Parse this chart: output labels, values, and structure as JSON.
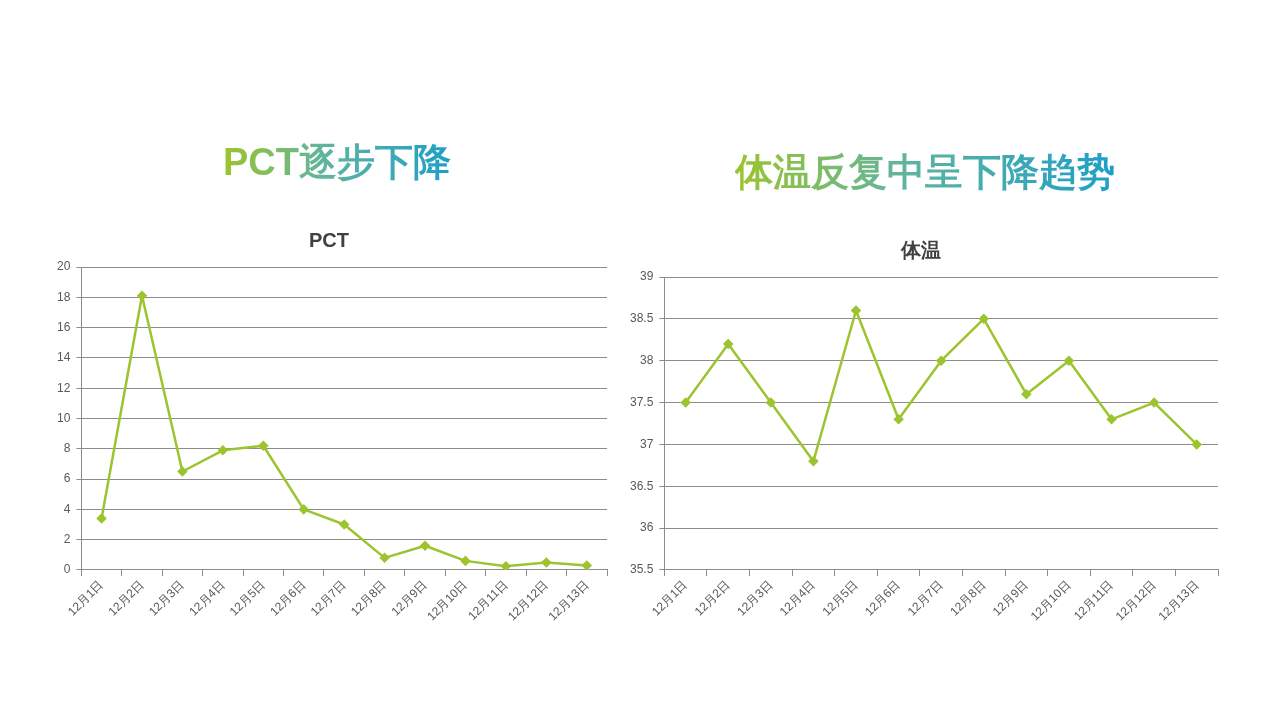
{
  "chart_data": [
    {
      "type": "line",
      "title": "PCT逐步下降",
      "subtitle": "PCT",
      "categories": [
        "12月1日",
        "12月2日",
        "12月3日",
        "12月4日",
        "12月5日",
        "12月6日",
        "12月7日",
        "12月8日",
        "12月9日",
        "12月10日",
        "12月11日",
        "12月12日",
        "12月13日"
      ],
      "series": [
        {
          "color": "#9cc42e",
          "values": [
            3.4,
            18.1,
            6.5,
            7.9,
            8.2,
            4.0,
            3.0,
            0.8,
            1.6,
            0.6,
            0.25,
            0.5,
            0.3
          ]
        }
      ],
      "ylim": [
        0,
        20
      ],
      "yticks": [
        0,
        2,
        4,
        6,
        8,
        10,
        12,
        14,
        16,
        18,
        20
      ],
      "grid": "y",
      "marker": "diamond",
      "line_style": "solid"
    },
    {
      "type": "line",
      "title": "体温反复中呈下降趋势",
      "subtitle": "体温",
      "categories": [
        "12月1日",
        "12月2日",
        "12月3日",
        "12月4日",
        "12月5日",
        "12月6日",
        "12月7日",
        "12月8日",
        "12月9日",
        "12月10日",
        "12月11日",
        "12月12日",
        "12月13日"
      ],
      "series": [
        {
          "color": "#9cc42e",
          "values": [
            37.5,
            38.2,
            37.5,
            36.8,
            38.6,
            37.3,
            38.0,
            38.5,
            37.6,
            38.0,
            37.3,
            37.5,
            37.0
          ]
        }
      ],
      "ylim": [
        35.5,
        39
      ],
      "yticks": [
        35.5,
        36,
        36.5,
        37,
        37.5,
        38,
        38.5,
        39
      ],
      "grid": "y",
      "marker": "diamond",
      "line_style": "solid"
    }
  ]
}
